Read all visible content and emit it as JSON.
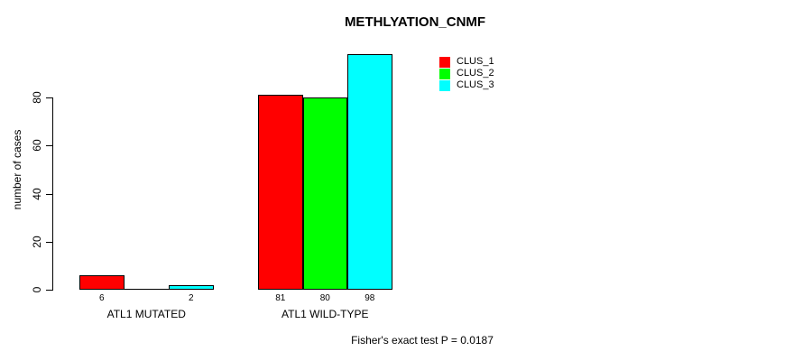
{
  "chart_data": {
    "type": "bar",
    "title": "METHLYATION_CNMF",
    "xlabel": "",
    "ylabel": "number of cases",
    "yticks": [
      0,
      20,
      40,
      60,
      80
    ],
    "ylim": [
      0,
      100
    ],
    "grid": false,
    "legend_position": "top-right",
    "categories": [
      "ATL1 MUTATED",
      "ATL1 WILD-TYPE"
    ],
    "series": [
      {
        "name": "CLUS_1",
        "color": "#FF0000",
        "values": [
          6,
          81
        ]
      },
      {
        "name": "CLUS_2",
        "color": "#00FF00",
        "values": [
          0,
          80
        ]
      },
      {
        "name": "CLUS_3",
        "color": "#00FFFF",
        "values": [
          2,
          98
        ]
      }
    ],
    "bar_value_labels": [
      [
        "6",
        "",
        "2"
      ],
      [
        "81",
        "80",
        "98"
      ]
    ],
    "annotation": "Fisher's exact test P = 0.0187",
    "axis_color": "#000000",
    "background_color": "#FFFFFF"
  }
}
